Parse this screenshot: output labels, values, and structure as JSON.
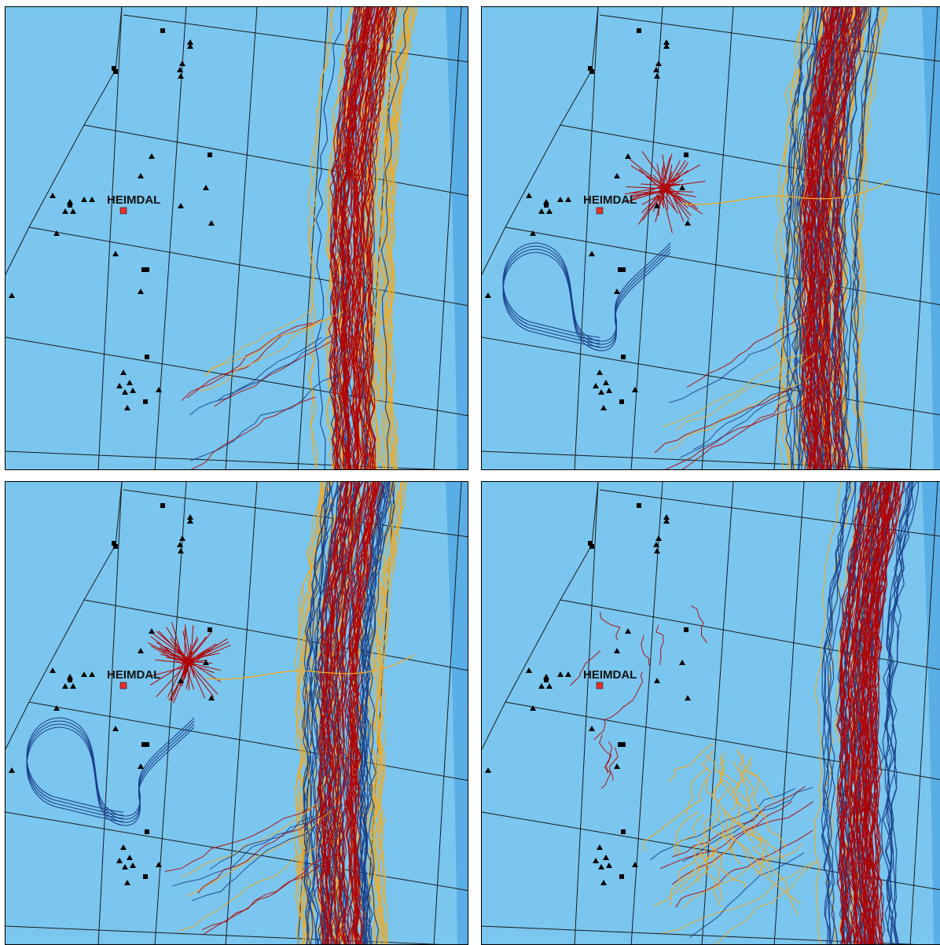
{
  "map": {
    "field_label": "HEIMDAL",
    "colors": {
      "sea": "#7ac6ee",
      "deep_sea": "#5aaee6",
      "grid": "#1a1a1a",
      "marker": "#000000",
      "field_marker": "#e8302a",
      "track_red": "#b20000",
      "track_orange": "#f5a81c",
      "track_blue": "#1a3f8a"
    },
    "panels": [
      {
        "id": "top-left",
        "dominant_tracks": [
          "red",
          "orange"
        ],
        "clusters": []
      },
      {
        "id": "top-right",
        "dominant_tracks": [
          "blue",
          "red",
          "orange"
        ],
        "clusters": [
          "red-cluster-near-field",
          "blue-loop-southwest"
        ]
      },
      {
        "id": "bottom-left",
        "dominant_tracks": [
          "blue",
          "red",
          "orange"
        ],
        "clusters": [
          "red-cluster-near-field",
          "blue-loop-southwest"
        ]
      },
      {
        "id": "bottom-right",
        "dominant_tracks": [
          "red",
          "blue"
        ],
        "clusters": [
          "orange-cluster-south"
        ]
      }
    ]
  }
}
